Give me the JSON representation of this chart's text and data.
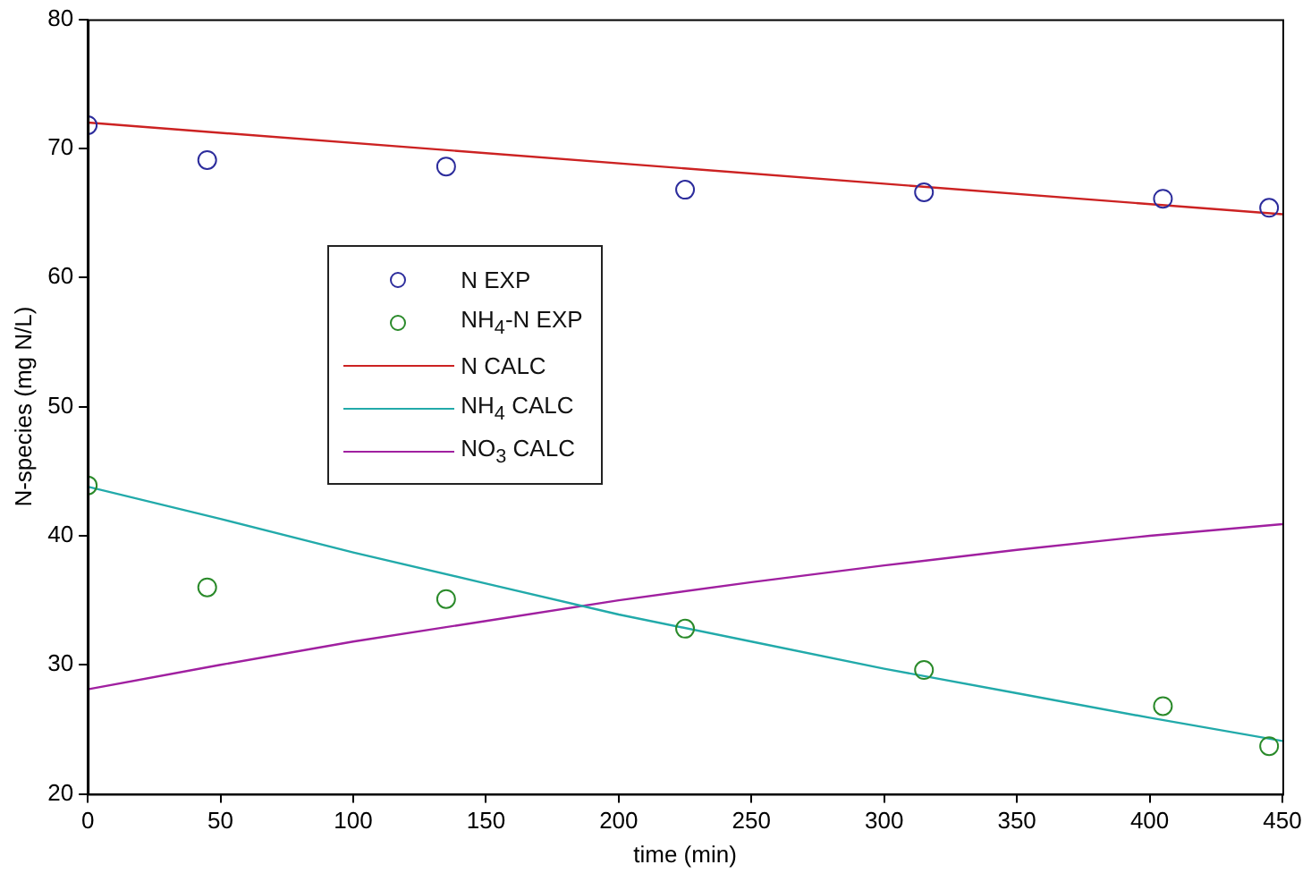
{
  "chart_data": {
    "type": "line",
    "xlabel": "time (min)",
    "ylabel": "N-species (mg N/L)",
    "xlim": [
      0,
      450
    ],
    "xticks": [
      0,
      50,
      100,
      150,
      200,
      250,
      300,
      350,
      400,
      450
    ],
    "ylim": [
      20,
      80
    ],
    "yticks": [
      20,
      30,
      40,
      50,
      60,
      70,
      80
    ],
    "grid": false,
    "legend": "center left",
    "series": [
      {
        "name": "N EXP",
        "type": "scatter",
        "marker": "circle",
        "color": "#2c2c9c",
        "x": [
          0,
          45,
          135,
          225,
          315,
          405,
          445
        ],
        "values": [
          71.8,
          69.1,
          68.6,
          66.8,
          66.6,
          66.1,
          65.4
        ]
      },
      {
        "name": "NH$_{4}$-N EXP",
        "type": "scatter",
        "marker": "circle",
        "color": "#2a8a2a",
        "x": [
          0,
          45,
          135,
          225,
          315,
          405,
          445
        ],
        "values": [
          43.9,
          36.0,
          35.1,
          32.8,
          29.6,
          26.8,
          23.7
        ]
      },
      {
        "name": "N CALC",
        "marker": "none",
        "color": "#cc2222",
        "x": [
          0,
          450
        ],
        "values": [
          72.0,
          64.9
        ]
      },
      {
        "name": "NH$_{4}$ CALC",
        "marker": "none",
        "color": "#22aaaa",
        "x": [
          0,
          50,
          100,
          150,
          200,
          250,
          300,
          350,
          400,
          450
        ],
        "values": [
          43.8,
          41.3,
          38.7,
          36.3,
          33.9,
          31.8,
          29.7,
          27.8,
          25.9,
          24.1
        ]
      },
      {
        "name": "NO$_{3}$ CALC",
        "marker": "none",
        "color": "#a020a0",
        "x": [
          0,
          50,
          100,
          150,
          200,
          250,
          300,
          350,
          400,
          450
        ],
        "values": [
          28.1,
          30.0,
          31.8,
          33.4,
          35.0,
          36.4,
          37.7,
          38.9,
          40.0,
          40.9
        ]
      }
    ]
  }
}
